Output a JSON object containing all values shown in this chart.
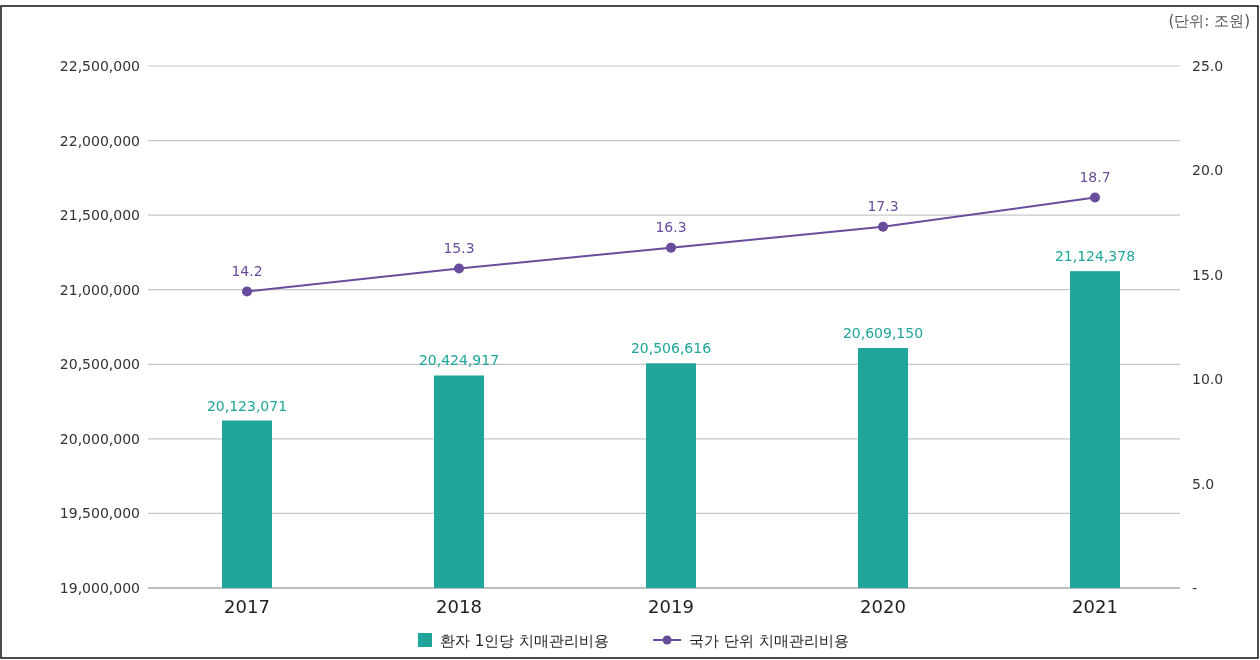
{
  "chart_data": {
    "type": "bar",
    "categories": [
      "2017",
      "2018",
      "2019",
      "2020",
      "2021"
    ],
    "series": [
      {
        "name": "환자 1인당 치매관리비용",
        "color": "#1fa59a",
        "values": [
          20123071,
          20424917,
          20506616,
          20609150,
          21124378
        ],
        "value_labels": [
          "20,123,071",
          "20,424,917",
          "20,506,616",
          "20,609,150",
          "21,124,378"
        ]
      },
      {
        "name": "국가 단위 치매관리비용",
        "type": "line",
        "axis": "y2",
        "color": "#6a4c9c",
        "marker": "circle",
        "values": [
          14.2,
          15.3,
          16.3,
          17.3,
          18.7
        ],
        "value_labels": [
          "14.2",
          "15.3",
          "16.3",
          "17.3",
          "18.7"
        ]
      }
    ],
    "ylim": [
      19000000,
      22500000
    ],
    "yticks": [
      {
        "value": 19000000,
        "label": "19,000,000"
      },
      {
        "value": 19500000,
        "label": "19,500,000"
      },
      {
        "value": 20000000,
        "label": "20,000,000"
      },
      {
        "value": 20500000,
        "label": "20,500,000"
      },
      {
        "value": 21000000,
        "label": "21,000,000"
      },
      {
        "value": 21500000,
        "label": "21,500,000"
      },
      {
        "value": 22000000,
        "label": "22,000,000"
      },
      {
        "value": 22500000,
        "label": "22,500,000"
      }
    ],
    "y2lim": [
      0,
      25
    ],
    "y2ticks": [
      {
        "value": 0,
        "label": "-"
      },
      {
        "value": 5,
        "label": "5.0"
      },
      {
        "value": 10,
        "label": "10.0"
      },
      {
        "value": 15,
        "label": "15.0"
      },
      {
        "value": 20,
        "label": "20.0"
      },
      {
        "value": 25,
        "label": "25.0"
      }
    ],
    "annotations": [
      "(단위: 조원)"
    ],
    "grid": "y",
    "legend": "bottom"
  }
}
